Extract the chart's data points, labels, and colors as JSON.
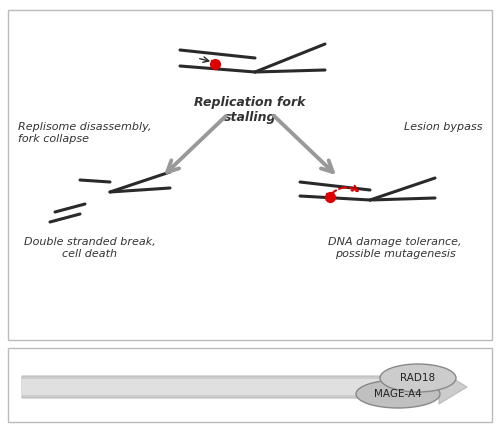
{
  "fig_width": 5.0,
  "fig_height": 4.32,
  "dpi": 100,
  "bg_color": "#ffffff",
  "line_color": "#2a2a2a",
  "arrow_color": "#999999",
  "red_color": "#dd0000",
  "label_color": "#333333",
  "top_label": "Replication fork\nstalling",
  "left_top_label": "Replisome disassembly,\nfork collapse",
  "left_bottom_label": "Double stranded break,\ncell death",
  "right_top_label": "Lesion bypass",
  "right_bottom_label": "DNA damage tolerance,\npossible mutagenesis",
  "label_fontsize": 8,
  "rad18_label": "RAD18",
  "mage_label": "MAGE-A4"
}
